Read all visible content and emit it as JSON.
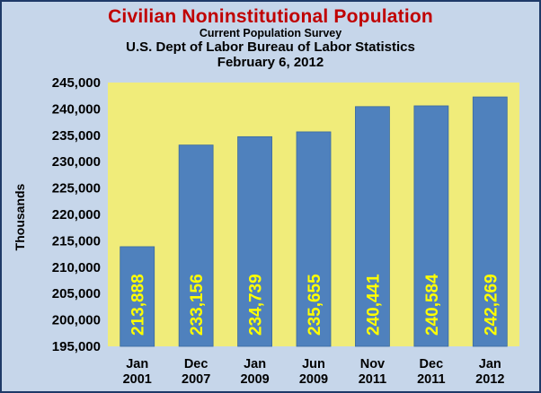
{
  "chart_data": {
    "type": "bar",
    "title": "Civilian Noninstitutional Population",
    "subtitle": "Current Population Survey",
    "source": "U.S. Dept of Labor Bureau of Labor Statistics",
    "date": "February 6, 2012",
    "ylabel": "Thousands",
    "xlabel": "",
    "ylim": [
      195000,
      245000
    ],
    "yticks": [
      195000,
      200000,
      205000,
      210000,
      215000,
      220000,
      225000,
      230000,
      235000,
      240000,
      245000
    ],
    "ytick_labels": [
      "195,000",
      "200,000",
      "205,000",
      "210,000",
      "215,000",
      "220,000",
      "225,000",
      "230,000",
      "235,000",
      "240,000",
      "245,000"
    ],
    "categories": [
      [
        "Jan",
        "2001"
      ],
      [
        "Dec",
        "2007"
      ],
      [
        "Jan",
        "2009"
      ],
      [
        "Jun",
        "2009"
      ],
      [
        "Nov",
        "2011"
      ],
      [
        "Dec",
        "2011"
      ],
      [
        "Jan",
        "2012"
      ]
    ],
    "values": [
      213888,
      233156,
      234739,
      235655,
      240441,
      240584,
      242269
    ],
    "value_labels": [
      "213,888",
      "233,156",
      "234,739",
      "235,655",
      "240,441",
      "240,584",
      "242,269"
    ],
    "grid": false,
    "legend": "none",
    "colors": {
      "bar": "#4f81bd",
      "plot_background": "#f0ec7a",
      "chart_background": "#c6d6ea",
      "title": "#c00000",
      "data_label": "#ffff00"
    }
  }
}
